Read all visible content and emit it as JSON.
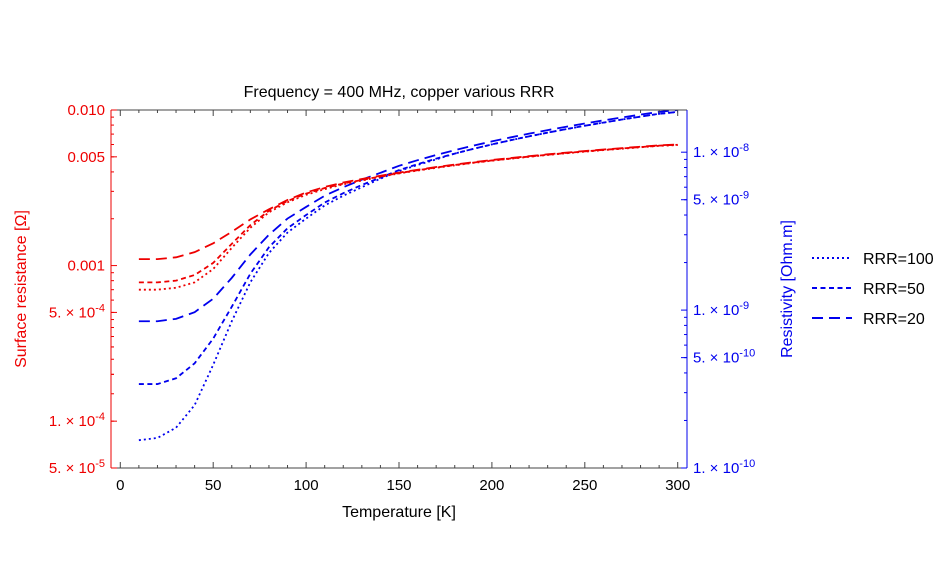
{
  "chart_data": {
    "type": "line",
    "title": "Frequency = 400 MHz, copper various RRR",
    "xlabel": "Temperature [K]",
    "ylabel_left": "Surface resistance [Ω]",
    "ylabel_right": "Resistivity [Ohm.m]",
    "xlim": [
      -5,
      305
    ],
    "ylim_left": [
      5e-05,
      0.01
    ],
    "ylim_right": [
      1e-10,
      1.85e-08
    ],
    "y_scale": "log",
    "x_ticks": [
      0,
      50,
      100,
      150,
      200,
      250,
      300
    ],
    "x_tick_labels": [
      "0",
      "50",
      "100",
      "150",
      "200",
      "250",
      "300"
    ],
    "left_ticks": [
      {
        "value": 0.01,
        "label": "0.010",
        "mantissa": "",
        "exponent": ""
      },
      {
        "value": 0.005,
        "label": "0.005",
        "mantissa": "",
        "exponent": ""
      },
      {
        "value": 0.001,
        "label": "0.001",
        "mantissa": "",
        "exponent": ""
      },
      {
        "value": 0.0005,
        "label": "",
        "mantissa": "5. × 10",
        "exponent": "-4"
      },
      {
        "value": 0.0001,
        "label": "",
        "mantissa": "1. × 10",
        "exponent": "-4"
      },
      {
        "value": 5e-05,
        "label": "",
        "mantissa": "5. × 10",
        "exponent": "-5"
      }
    ],
    "right_ticks": [
      {
        "value": 1e-08,
        "mantissa": "1. × 10",
        "exponent": "-8"
      },
      {
        "value": 5e-09,
        "mantissa": "5. × 10",
        "exponent": "-9"
      },
      {
        "value": 1e-09,
        "mantissa": "1. × 10",
        "exponent": "-9"
      },
      {
        "value": 5e-10,
        "mantissa": "5. × 10",
        "exponent": "-10"
      },
      {
        "value": 1e-10,
        "mantissa": "1. × 10",
        "exponent": "-10"
      }
    ],
    "x": [
      10,
      20,
      30,
      40,
      50,
      60,
      70,
      80,
      90,
      100,
      110,
      120,
      130,
      140,
      150,
      160,
      170,
      180,
      190,
      200,
      210,
      220,
      230,
      240,
      250,
      260,
      270,
      280,
      290,
      300
    ],
    "series": [
      {
        "name": "RRR=100",
        "quantity": "Resistivity",
        "axis": "right",
        "color": "#0000ee",
        "dash": "dotted",
        "values": [
          1.5e-10,
          1.55e-10,
          1.8e-10,
          2.5e-10,
          4.5e-10,
          8.5e-10,
          1.5e-09,
          2.3e-09,
          3.1e-09,
          3.8e-09,
          4.6e-09,
          5.3e-09,
          6e-09,
          6.8e-09,
          7.6e-09,
          8.3e-09,
          9e-09,
          9.8e-09,
          1.05e-08,
          1.12e-08,
          1.19e-08,
          1.26e-08,
          1.33e-08,
          1.4e-08,
          1.47e-08,
          1.54e-08,
          1.61e-08,
          1.68e-08,
          1.75e-08,
          1.8e-08
        ]
      },
      {
        "name": "RRR=50",
        "quantity": "Resistivity",
        "axis": "right",
        "color": "#0000ee",
        "dash": "short-dash",
        "values": [
          3.4e-10,
          3.4e-10,
          3.7e-10,
          4.6e-10,
          6.6e-10,
          1.05e-09,
          1.7e-09,
          2.5e-09,
          3.3e-09,
          4e-09,
          4.8e-09,
          5.5e-09,
          6.2e-09,
          6.9e-09,
          7.7e-09,
          8.4e-09,
          9.1e-09,
          9.8e-09,
          1.05e-08,
          1.12e-08,
          1.19e-08,
          1.26e-08,
          1.33e-08,
          1.4e-08,
          1.47e-08,
          1.54e-08,
          1.61e-08,
          1.68e-08,
          1.75e-08,
          1.8e-08
        ]
      },
      {
        "name": "RRR=20",
        "quantity": "Resistivity",
        "axis": "right",
        "color": "#0000ee",
        "dash": "long-dash",
        "values": [
          8.5e-10,
          8.5e-10,
          8.8e-10,
          9.7e-10,
          1.18e-09,
          1.6e-09,
          2.25e-09,
          3e-09,
          3.8e-09,
          4.5e-09,
          5.3e-09,
          6e-09,
          6.7e-09,
          7.4e-09,
          8.2e-09,
          8.9e-09,
          9.6e-09,
          1.03e-08,
          1.1e-08,
          1.17e-08,
          1.24e-08,
          1.31e-08,
          1.38e-08,
          1.45e-08,
          1.52e-08,
          1.59e-08,
          1.66e-08,
          1.73e-08,
          1.8e-08,
          1.85e-08
        ]
      },
      {
        "name": "RRR=100",
        "quantity": "Surface resistance",
        "axis": "left",
        "color": "#ee0000",
        "dash": "dotted",
        "values": [
          0.0007,
          0.0007,
          0.00072,
          0.00078,
          0.00095,
          0.0013,
          0.00175,
          0.0022,
          0.00255,
          0.00285,
          0.0031,
          0.00333,
          0.00352,
          0.00372,
          0.00391,
          0.00408,
          0.00425,
          0.00441,
          0.00457,
          0.00472,
          0.00486,
          0.005,
          0.00514,
          0.00527,
          0.0054,
          0.00552,
          0.00564,
          0.00576,
          0.00588,
          0.00595
        ]
      },
      {
        "name": "RRR=50",
        "quantity": "Surface resistance",
        "axis": "left",
        "color": "#ee0000",
        "dash": "short-dash",
        "values": [
          0.00078,
          0.00078,
          0.0008,
          0.00087,
          0.00104,
          0.00138,
          0.00182,
          0.00225,
          0.0026,
          0.0029,
          0.00315,
          0.00337,
          0.00355,
          0.00374,
          0.00393,
          0.0041,
          0.00427,
          0.00443,
          0.00459,
          0.00474,
          0.00488,
          0.00502,
          0.00516,
          0.00529,
          0.00542,
          0.00554,
          0.00566,
          0.00578,
          0.0059,
          0.00598
        ]
      },
      {
        "name": "RRR=20",
        "quantity": "Surface resistance",
        "axis": "left",
        "color": "#ee0000",
        "dash": "long-dash",
        "values": [
          0.0011,
          0.0011,
          0.00113,
          0.00122,
          0.00139,
          0.00165,
          0.00198,
          0.0023,
          0.00264,
          0.00295,
          0.0032,
          0.00342,
          0.0036,
          0.00378,
          0.00396,
          0.00413,
          0.0043,
          0.00446,
          0.00462,
          0.00477,
          0.00491,
          0.00505,
          0.00519,
          0.00532,
          0.00545,
          0.00557,
          0.00569,
          0.00581,
          0.00593,
          0.006
        ]
      }
    ],
    "legend": {
      "position": "right",
      "entries": [
        {
          "label": "RRR=100",
          "color": "#0000ee",
          "dash": "dotted"
        },
        {
          "label": "RRR=50",
          "color": "#0000ee",
          "dash": "short-dash"
        },
        {
          "label": "RRR=20",
          "color": "#0000ee",
          "dash": "long-dash"
        }
      ]
    },
    "colors": {
      "left_axis": "#ee0000",
      "right_axis": "#0000ee",
      "frame": "#444444",
      "text": "#000000"
    }
  }
}
